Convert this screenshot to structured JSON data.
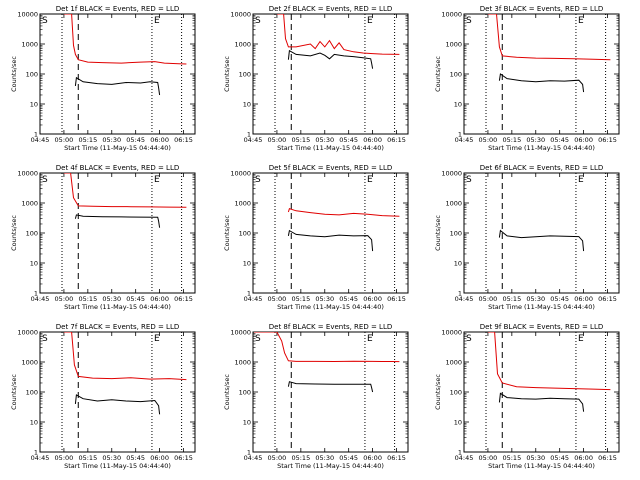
{
  "colors": {
    "events": "#000000",
    "lld": "#e00000",
    "axes": "#000000"
  },
  "x_tick_labels": [
    "04:45",
    "05:00",
    "05:15",
    "05:30",
    "05:45",
    "06:00",
    "06:15"
  ],
  "x_axis_label": "Start Time (11-May-15 04:44:40)",
  "y_axis_label": "Counts/sec",
  "y_tick_labels": [
    "1",
    "10",
    "100",
    "1000",
    "10000"
  ],
  "markers": {
    "start": "S",
    "end": "E"
  },
  "chart_data": [
    {
      "type": "line",
      "title": "Det 1f BLACK = Events, RED = LLD",
      "xlim": [
        4.75,
        6.37
      ],
      "ylim": [
        1,
        10000
      ],
      "ylog": true,
      "vlines_dotted": [
        4.98,
        5.92,
        6.23
      ],
      "vline_dashed": 5.15,
      "series": [
        {
          "color": "lld",
          "x": [
            5.0,
            5.08,
            5.1,
            5.12,
            5.15,
            5.25,
            5.4,
            5.6,
            5.8,
            5.95,
            6.05,
            6.2,
            6.28
          ],
          "y": [
            10000,
            10000,
            900,
            450,
            300,
            250,
            240,
            230,
            250,
            260,
            230,
            220,
            215
          ]
        },
        {
          "color": "events",
          "x": [
            5.12,
            5.13,
            5.2,
            5.35,
            5.5,
            5.65,
            5.8,
            5.9,
            5.98,
            5.99,
            6.0
          ],
          "y": [
            40,
            75,
            55,
            48,
            45,
            52,
            50,
            55,
            52,
            35,
            20
          ]
        }
      ]
    },
    {
      "type": "line",
      "title": "Det 2f BLACK = Events, RED = LLD",
      "xlim": [
        4.75,
        6.37
      ],
      "ylim": [
        1,
        10000
      ],
      "ylog": true,
      "vlines_dotted": [
        4.98,
        5.92,
        6.23
      ],
      "vline_dashed": 5.15,
      "series": [
        {
          "color": "lld",
          "x": [
            5.0,
            5.07,
            5.09,
            5.12,
            5.2,
            5.35,
            5.4,
            5.45,
            5.5,
            5.55,
            5.6,
            5.65,
            5.7,
            5.8,
            5.9,
            6.0,
            6.1,
            6.28
          ],
          "y": [
            10000,
            10000,
            1500,
            800,
            800,
            1000,
            700,
            1200,
            800,
            1300,
            700,
            1100,
            650,
            550,
            500,
            480,
            460,
            450
          ]
        },
        {
          "color": "events",
          "x": [
            5.12,
            5.13,
            5.2,
            5.35,
            5.45,
            5.5,
            5.55,
            5.6,
            5.7,
            5.8,
            5.9,
            5.98,
            5.99,
            6.0
          ],
          "y": [
            300,
            600,
            450,
            400,
            500,
            420,
            320,
            450,
            400,
            380,
            350,
            320,
            230,
            150
          ]
        }
      ]
    },
    {
      "type": "line",
      "title": "Det 3f BLACK = Events, RED = LLD",
      "xlim": [
        4.75,
        6.37
      ],
      "ylim": [
        1,
        10000
      ],
      "ylog": true,
      "vlines_dotted": [
        4.98,
        5.92,
        6.23
      ],
      "vline_dashed": 5.15,
      "series": [
        {
          "color": "lld",
          "x": [
            5.0,
            5.09,
            5.12,
            5.15,
            5.3,
            5.5,
            5.7,
            5.9,
            6.1,
            6.28
          ],
          "y": [
            10000,
            10000,
            800,
            400,
            360,
            340,
            330,
            320,
            310,
            300
          ]
        },
        {
          "color": "events",
          "x": [
            5.12,
            5.13,
            5.2,
            5.35,
            5.5,
            5.65,
            5.8,
            5.95,
            5.99,
            6.0
          ],
          "y": [
            60,
            100,
            70,
            60,
            55,
            60,
            58,
            62,
            45,
            25
          ]
        }
      ]
    },
    {
      "type": "line",
      "title": "Det 4f BLACK = Events, RED = LLD",
      "xlim": [
        4.75,
        6.37
      ],
      "ylim": [
        1,
        10000
      ],
      "ylog": true,
      "vlines_dotted": [
        4.98,
        5.92,
        6.23
      ],
      "vline_dashed": 5.15,
      "series": [
        {
          "color": "lld",
          "x": [
            5.0,
            5.07,
            5.1,
            5.15,
            5.3,
            5.5,
            5.7,
            5.9,
            6.1,
            6.28
          ],
          "y": [
            10000,
            10000,
            1500,
            800,
            780,
            760,
            750,
            740,
            730,
            720
          ]
        },
        {
          "color": "events",
          "x": [
            5.12,
            5.13,
            5.2,
            5.4,
            5.6,
            5.8,
            5.98,
            5.99,
            6.0
          ],
          "y": [
            300,
            400,
            360,
            350,
            345,
            340,
            335,
            250,
            150
          ]
        }
      ]
    },
    {
      "type": "line",
      "title": "Det 5f BLACK = Events, RED = LLD",
      "xlim": [
        4.75,
        6.37
      ],
      "ylim": [
        1,
        10000
      ],
      "ylog": true,
      "vlines_dotted": [
        4.98,
        5.92,
        6.23
      ],
      "vline_dashed": 5.15,
      "series": [
        {
          "color": "lld",
          "x": [
            5.12,
            5.13,
            5.2,
            5.35,
            5.5,
            5.65,
            5.8,
            5.95,
            6.1,
            6.28
          ],
          "y": [
            500,
            650,
            550,
            480,
            420,
            400,
            450,
            420,
            380,
            360
          ]
        },
        {
          "color": "events",
          "x": [
            5.12,
            5.13,
            5.2,
            5.35,
            5.5,
            5.65,
            5.8,
            5.95,
            5.99,
            6.0
          ],
          "y": [
            80,
            120,
            90,
            80,
            75,
            85,
            80,
            82,
            60,
            25
          ]
        }
      ]
    },
    {
      "type": "line",
      "title": "Det 6f BLACK = Events, RED = LLD",
      "xlim": [
        4.75,
        6.37
      ],
      "ylim": [
        1,
        10000
      ],
      "ylog": true,
      "vlines_dotted": [
        4.98,
        5.92,
        6.23
      ],
      "vline_dashed": 5.15,
      "series": [
        {
          "color": "events",
          "x": [
            5.12,
            5.13,
            5.2,
            5.35,
            5.5,
            5.65,
            5.8,
            5.95,
            5.99,
            6.0
          ],
          "y": [
            70,
            120,
            80,
            70,
            75,
            80,
            78,
            76,
            55,
            25
          ]
        }
      ]
    },
    {
      "type": "line",
      "title": "Det 7f BLACK = Events, RED = LLD",
      "xlim": [
        4.75,
        6.37
      ],
      "ylim": [
        1,
        10000
      ],
      "ylog": true,
      "vlines_dotted": [
        4.98,
        5.92,
        6.23
      ],
      "vline_dashed": 5.15,
      "series": [
        {
          "color": "lld",
          "x": [
            5.0,
            5.08,
            5.11,
            5.15,
            5.3,
            5.5,
            5.7,
            5.9,
            6.1,
            6.28
          ],
          "y": [
            10000,
            10000,
            800,
            330,
            290,
            280,
            300,
            270,
            280,
            260
          ]
        },
        {
          "color": "events",
          "x": [
            5.12,
            5.13,
            5.2,
            5.35,
            5.5,
            5.65,
            5.8,
            5.95,
            5.99,
            6.0
          ],
          "y": [
            40,
            80,
            60,
            50,
            55,
            50,
            48,
            52,
            35,
            18
          ]
        }
      ]
    },
    {
      "type": "line",
      "title": "Det 8f BLACK = Events, RED = LLD",
      "xlim": [
        4.75,
        6.37
      ],
      "ylim": [
        1,
        10000
      ],
      "ylog": true,
      "vlines_dotted": [
        4.98,
        5.92,
        6.23
      ],
      "vline_dashed": 5.15,
      "series": [
        {
          "color": "lld",
          "x": [
            4.76,
            5.0,
            5.05,
            5.08,
            5.12,
            5.2,
            5.4,
            5.6,
            5.8,
            6.0,
            6.2,
            6.28
          ],
          "y": [
            10000,
            10000,
            5000,
            2000,
            1100,
            1050,
            1050,
            1040,
            1060,
            1050,
            1040,
            1030
          ]
        },
        {
          "color": "events",
          "x": [
            5.12,
            5.13,
            5.2,
            5.4,
            5.6,
            5.8,
            5.98,
            5.99,
            6.0
          ],
          "y": [
            150,
            220,
            190,
            185,
            180,
            182,
            180,
            140,
            100
          ]
        }
      ]
    },
    {
      "type": "line",
      "title": "Det 9f BLACK = Events, RED = LLD",
      "xlim": [
        4.75,
        6.37
      ],
      "ylim": [
        1,
        10000
      ],
      "ylog": true,
      "vlines_dotted": [
        4.98,
        5.92,
        6.23
      ],
      "vline_dashed": 5.15,
      "series": [
        {
          "color": "lld",
          "x": [
            5.0,
            5.07,
            5.1,
            5.15,
            5.3,
            5.5,
            5.7,
            5.9,
            6.1,
            6.28
          ],
          "y": [
            10000,
            10000,
            400,
            200,
            150,
            140,
            135,
            130,
            125,
            120
          ]
        },
        {
          "color": "events",
          "x": [
            5.12,
            5.13,
            5.2,
            5.35,
            5.5,
            5.65,
            5.8,
            5.95,
            5.99,
            6.0
          ],
          "y": [
            45,
            90,
            65,
            60,
            58,
            62,
            60,
            58,
            40,
            22
          ]
        }
      ]
    }
  ]
}
